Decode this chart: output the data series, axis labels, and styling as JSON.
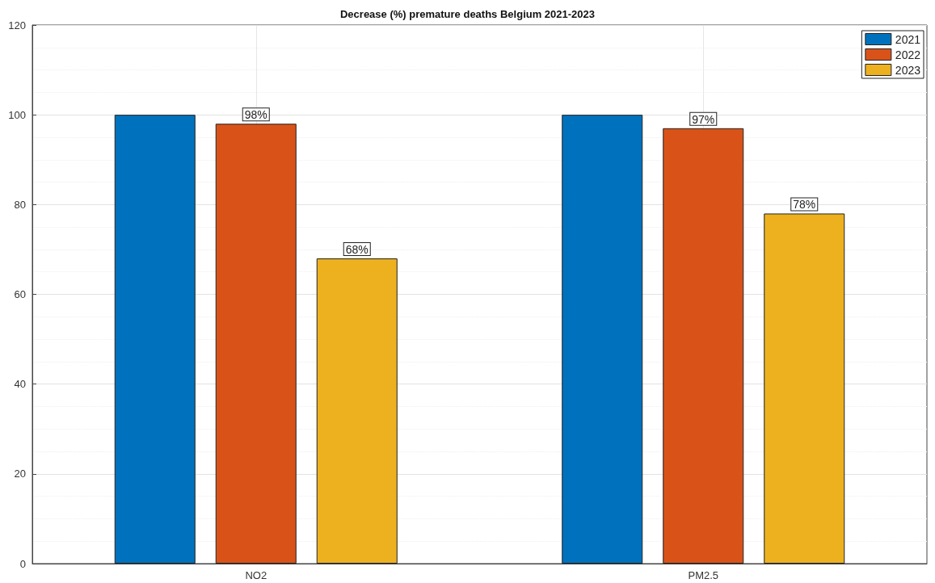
{
  "chart_data": {
    "type": "bar",
    "title": "Decrease (%) premature deaths Belgium 2021-2023",
    "categories": [
      "NO2",
      "PM2.5"
    ],
    "series": [
      {
        "name": "2021",
        "color": "#0072bd",
        "values": [
          100,
          100
        ]
      },
      {
        "name": "2022",
        "color": "#d95319",
        "values": [
          98,
          97
        ],
        "value_labels": [
          "98%",
          "97%"
        ]
      },
      {
        "name": "2023",
        "color": "#edb120",
        "values": [
          68,
          78
        ],
        "value_labels": [
          "68%",
          "78%"
        ]
      }
    ],
    "ylim": [
      0,
      120
    ],
    "yticks": [
      0,
      20,
      40,
      60,
      80,
      100,
      120
    ],
    "grid": true,
    "legend": "top right"
  }
}
